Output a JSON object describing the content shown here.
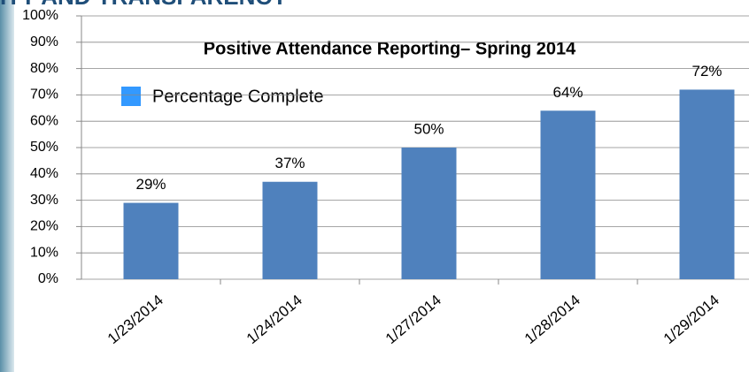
{
  "header_text": "ITY AND TRANSPARENCY",
  "chart_data": {
    "type": "bar",
    "title": "Positive Attendance Reporting– Spring 2014",
    "categories": [
      "1/23/2014",
      "1/24/2014",
      "1/27/2014",
      "1/28/2014",
      "1/29/2014"
    ],
    "series": [
      {
        "name": "Percentage Complete",
        "color": "#4f81bd",
        "values": [
          29,
          37,
          50,
          64,
          72
        ],
        "value_labels": [
          "29%",
          "37%",
          "50%",
          "64%",
          "72%"
        ]
      }
    ],
    "legend_color": "#3399ff",
    "ylim": [
      0,
      100
    ],
    "yticks": [
      {
        "value": 0,
        "label": "0%"
      },
      {
        "value": 10,
        "label": "10%"
      },
      {
        "value": 20,
        "label": "20%"
      },
      {
        "value": 30,
        "label": "30%"
      },
      {
        "value": 40,
        "label": "40%"
      },
      {
        "value": 50,
        "label": "50%"
      },
      {
        "value": 60,
        "label": "60%"
      },
      {
        "value": 70,
        "label": "70%"
      },
      {
        "value": 80,
        "label": "80%"
      },
      {
        "value": 90,
        "label": "90%"
      },
      {
        "value": 100,
        "label": "100%"
      }
    ],
    "grid": true
  }
}
